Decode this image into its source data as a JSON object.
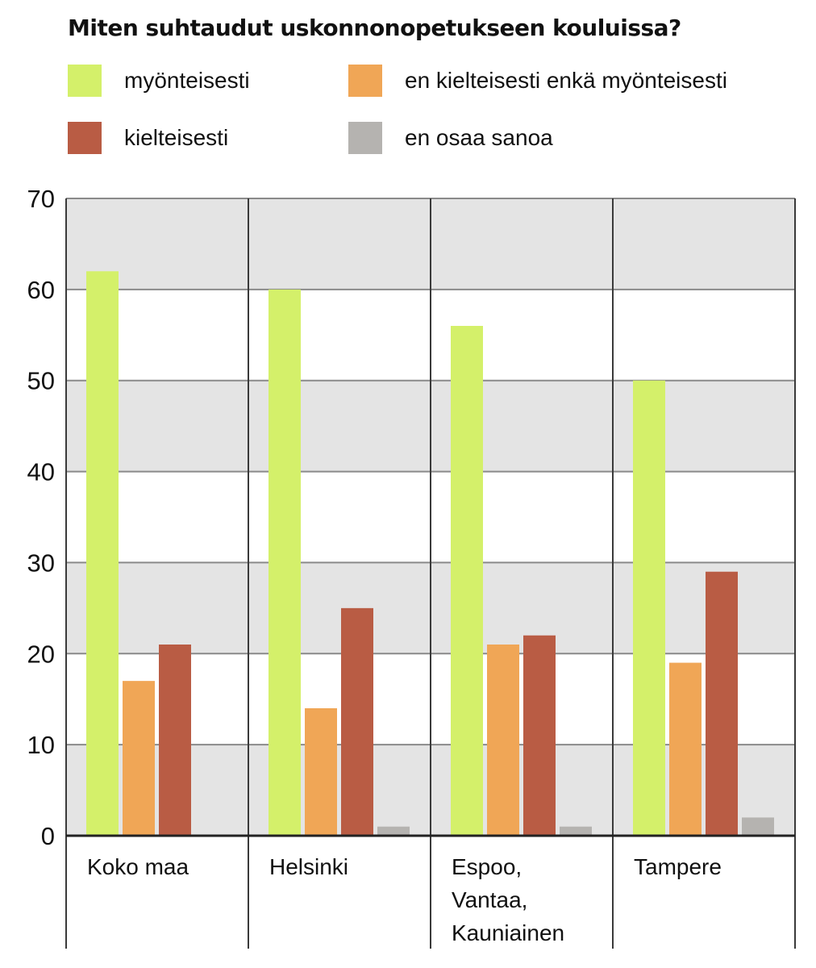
{
  "chart_data": {
    "type": "bar",
    "title": "Miten suhtaudut uskonnonopetukseen kouluissa?",
    "categories": [
      "Koko maa",
      "Helsinki",
      "Espoo,\nVantaa,\nKauniainen",
      "Tampere"
    ],
    "series": [
      {
        "name": "myönteisesti",
        "color": "#d4f06a",
        "values": [
          62,
          60,
          56,
          50
        ]
      },
      {
        "name": "en kielteisesti enkä myönteisesti",
        "color": "#f0a656",
        "values": [
          17,
          14,
          21,
          19
        ]
      },
      {
        "name": "kielteisesti",
        "color": "#b95c44",
        "values": [
          21,
          25,
          22,
          29
        ]
      },
      {
        "name": "en osaa sanoa",
        "color": "#b5b3b0",
        "values": [
          0,
          1,
          1,
          2
        ]
      }
    ],
    "ylim": [
      0,
      70
    ],
    "yticks": [
      0,
      10,
      20,
      30,
      40,
      50,
      60,
      70
    ],
    "xlabel": "",
    "ylabel": "",
    "grid": true,
    "band_color": "#e4e4e4",
    "legend_position": "top"
  }
}
